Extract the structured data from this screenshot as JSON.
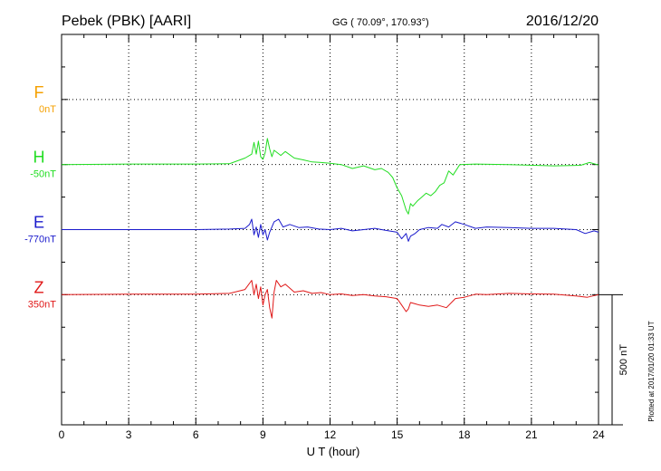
{
  "header": {
    "station": "Pebek (PBK)  [AARI]",
    "coords": "GG ( 70.09°, 170.93°)",
    "date": "2016/12/20"
  },
  "footer": {
    "plotted": "Plotted at 2017/01/20 01:33 UT"
  },
  "chart_data": {
    "type": "line",
    "xlabel": "U T (hour)",
    "xlim": [
      0,
      24
    ],
    "xticks": [
      0,
      3,
      6,
      9,
      12,
      15,
      18,
      21,
      24
    ],
    "ylim": [
      -500,
      1000
    ],
    "scale_bar": {
      "label": "500 nT",
      "value": 500
    },
    "colors": {
      "F": "#f5a000",
      "H": "#22dd22",
      "E": "#1a1acc",
      "Z": "#e01818"
    },
    "series": [
      {
        "name": "F",
        "baseline_label": "0nT",
        "offset": 750,
        "x": [],
        "y": []
      },
      {
        "name": "H",
        "baseline_label": "-50nT",
        "offset": 500,
        "x": [
          0,
          3,
          6,
          7.5,
          8.2,
          8.5,
          8.6,
          8.7,
          8.8,
          8.9,
          9.0,
          9.1,
          9.2,
          9.3,
          9.4,
          9.5,
          9.8,
          10.0,
          10.4,
          10.8,
          11.2,
          11.6,
          12.0,
          12.5,
          13.0,
          13.5,
          14.0,
          14.3,
          14.6,
          14.8,
          15.0,
          15.2,
          15.4,
          15.5,
          15.6,
          15.7,
          15.9,
          16.1,
          16.3,
          16.5,
          16.7,
          16.9,
          17.1,
          17.3,
          17.5,
          17.8,
          18.5,
          20,
          22,
          23.2,
          23.6,
          24
        ],
        "y": [
          0,
          2,
          2,
          3,
          25,
          40,
          85,
          40,
          90,
          30,
          20,
          45,
          100,
          60,
          30,
          55,
          35,
          50,
          25,
          18,
          10,
          8,
          5,
          0,
          -15,
          -5,
          -20,
          -15,
          -30,
          -50,
          -90,
          -120,
          -175,
          -190,
          -150,
          -160,
          -140,
          -125,
          -110,
          -120,
          -105,
          -80,
          -70,
          -25,
          -40,
          0,
          2,
          0,
          -5,
          -3,
          8,
          -2
        ]
      },
      {
        "name": "E",
        "baseline_label": "-770nT",
        "offset": 250,
        "x": [
          0,
          3,
          6,
          7.5,
          8.2,
          8.4,
          8.5,
          8.6,
          8.7,
          8.8,
          8.9,
          9.0,
          9.1,
          9.2,
          9.3,
          9.5,
          9.7,
          9.9,
          10.2,
          10.6,
          11.0,
          11.5,
          12.0,
          12.5,
          13.0,
          13.5,
          14.0,
          14.5,
          15.0,
          15.2,
          15.4,
          15.5,
          15.6,
          15.8,
          16.0,
          16.4,
          16.8,
          17.0,
          17.3,
          17.6,
          18.0,
          18.5,
          19.0,
          20,
          21,
          22,
          23,
          23.4,
          23.8,
          24
        ],
        "y": [
          0,
          0,
          0,
          2,
          5,
          20,
          40,
          -20,
          10,
          -30,
          20,
          -20,
          0,
          -40,
          -10,
          30,
          40,
          10,
          20,
          8,
          10,
          2,
          0,
          5,
          -5,
          0,
          5,
          -3,
          -10,
          -35,
          -15,
          -45,
          -25,
          -15,
          0,
          8,
          5,
          20,
          10,
          30,
          20,
          5,
          10,
          8,
          5,
          5,
          0,
          -15,
          -5,
          -10
        ]
      },
      {
        "name": "Z",
        "baseline_label": "350nT",
        "offset": 0,
        "x": [
          0,
          3,
          6,
          7.5,
          8.2,
          8.5,
          8.6,
          8.7,
          8.8,
          8.9,
          9.0,
          9.1,
          9.2,
          9.3,
          9.4,
          9.5,
          9.6,
          9.8,
          10.0,
          10.4,
          10.8,
          11.2,
          11.6,
          12.0,
          12.5,
          13.0,
          13.5,
          14.0,
          14.5,
          15.0,
          15.2,
          15.4,
          15.5,
          15.6,
          15.8,
          16.0,
          16.4,
          16.8,
          17.2,
          17.6,
          18.0,
          18.5,
          19.0,
          20,
          21,
          22,
          23,
          23.5,
          24
        ],
        "y": [
          0,
          2,
          2,
          5,
          20,
          55,
          0,
          40,
          -15,
          30,
          -40,
          0,
          20,
          -50,
          -90,
          10,
          55,
          30,
          40,
          10,
          15,
          5,
          8,
          0,
          3,
          -3,
          0,
          -5,
          -8,
          -15,
          -40,
          -65,
          -55,
          -30,
          -35,
          -40,
          -45,
          -40,
          -50,
          -15,
          -10,
          2,
          0,
          5,
          3,
          2,
          -5,
          -10,
          0
        ]
      }
    ]
  }
}
